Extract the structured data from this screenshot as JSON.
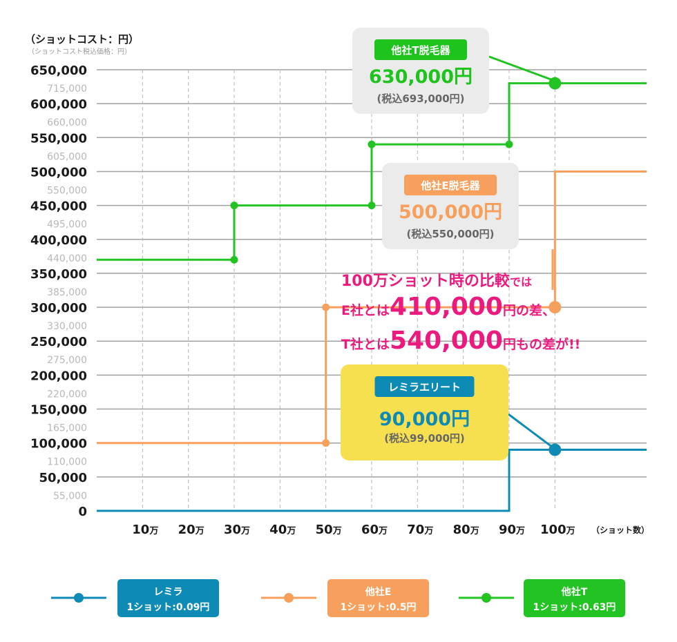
{
  "chart_data": {
    "type": "line",
    "y_title": "（ショットコスト：円）",
    "y_subtitle": "（ショットコスト税込価格：円）",
    "x_unit": "（ショット数）",
    "x_ticks": [
      {
        "value": 10,
        "num": "10",
        "unit": "万"
      },
      {
        "value": 20,
        "num": "20",
        "unit": "万"
      },
      {
        "value": 30,
        "num": "30",
        "unit": "万"
      },
      {
        "value": 40,
        "num": "40",
        "unit": "万"
      },
      {
        "value": 50,
        "num": "50",
        "unit": "万"
      },
      {
        "value": 60,
        "num": "60",
        "unit": "万"
      },
      {
        "value": 70,
        "num": "70",
        "unit": "万"
      },
      {
        "value": 80,
        "num": "80",
        "unit": "万"
      },
      {
        "value": 90,
        "num": "90",
        "unit": "万"
      },
      {
        "value": 100,
        "num": "100",
        "unit": "万"
      }
    ],
    "y_ticks": [
      {
        "value": 0,
        "label": "0",
        "tax": ""
      },
      {
        "value": 50000,
        "label": "50,000",
        "tax": "55,000"
      },
      {
        "value": 100000,
        "label": "100,000",
        "tax": "110,000"
      },
      {
        "value": 150000,
        "label": "150,000",
        "tax": "165,000"
      },
      {
        "value": 200000,
        "label": "200,000",
        "tax": "220,000"
      },
      {
        "value": 250000,
        "label": "250,000",
        "tax": "275,000"
      },
      {
        "value": 300000,
        "label": "300,000",
        "tax": "330,000"
      },
      {
        "value": 350000,
        "label": "350,000",
        "tax": "385,000"
      },
      {
        "value": 400000,
        "label": "400,000",
        "tax": "440,000"
      },
      {
        "value": 450000,
        "label": "450,000",
        "tax": "495,000"
      },
      {
        "value": 500000,
        "label": "500,000",
        "tax": "550,000"
      },
      {
        "value": 550000,
        "label": "550,000",
        "tax": "605,000"
      },
      {
        "value": 600000,
        "label": "600,000",
        "tax": "660,000"
      },
      {
        "value": 650000,
        "label": "650,000",
        "tax": "715,000"
      }
    ],
    "xlim": [
      0,
      120
    ],
    "ylim": [
      0,
      650000
    ],
    "series": [
      {
        "name": "レミラ",
        "rate": "1ショット:0.09円",
        "color": "#0e8bb5",
        "x": [
          0,
          90,
          90,
          100,
          120
        ],
        "y": [
          0,
          0,
          90000,
          90000,
          90000
        ],
        "markers": [
          100
        ]
      },
      {
        "name": "他社E",
        "rate": "1ショット:0.5円",
        "color": "#f7a05d",
        "x": [
          0,
          50,
          50,
          100,
          100,
          120
        ],
        "y": [
          100000,
          100000,
          300000,
          300000,
          500000,
          500000
        ],
        "markers": [
          50,
          50,
          100
        ]
      },
      {
        "name": "他社T",
        "rate": "1ショット:0.63円",
        "color": "#22c322",
        "x": [
          0,
          30,
          30,
          60,
          60,
          90,
          90,
          120
        ],
        "y": [
          370000,
          370000,
          450000,
          450000,
          540000,
          540000,
          630000,
          630000
        ],
        "markers": [
          30,
          30,
          60,
          60,
          90,
          100
        ]
      }
    ],
    "annotations": [
      {
        "key": "T",
        "name": "他社T脱毛器",
        "price": "630,000円",
        "tax": "(税込693,000円)",
        "box_color": "#ebebeb",
        "badge_color": "#1ec31e",
        "price_color": "#1ec31e"
      },
      {
        "key": "E",
        "name": "他社E脱毛器",
        "price": "500,000円",
        "tax": "(税込550,000円)",
        "box_color": "#ebebeb",
        "badge_color": "#f7a05d",
        "price_color": "#f7a05d"
      },
      {
        "key": "R",
        "name": "レミラエリート",
        "price": "90,000円",
        "tax": "(税込99,000円)",
        "box_color": "#f7e04f",
        "badge_color": "#0e8bb5",
        "price_color": "#0e8bb5"
      }
    ],
    "callout": {
      "color": "#ea1a7f",
      "line1_a": "100万ショット時の比較",
      "line1_b": "では",
      "line2_a": "E社とは",
      "line2_big": "410,000",
      "line2_b": "円の差、",
      "line3_a": "T社とは",
      "line3_big": "540,000",
      "line3_b": "円もの差が!!"
    },
    "legend": [
      {
        "name": "レミラ",
        "rate": "1ショット:0.09円",
        "color": "#0e8bb5"
      },
      {
        "name": "他社E",
        "rate": "1ショット:0.5円",
        "color": "#f7a05d"
      },
      {
        "name": "他社T",
        "rate": "1ショット:0.63円",
        "color": "#22c322"
      }
    ]
  }
}
